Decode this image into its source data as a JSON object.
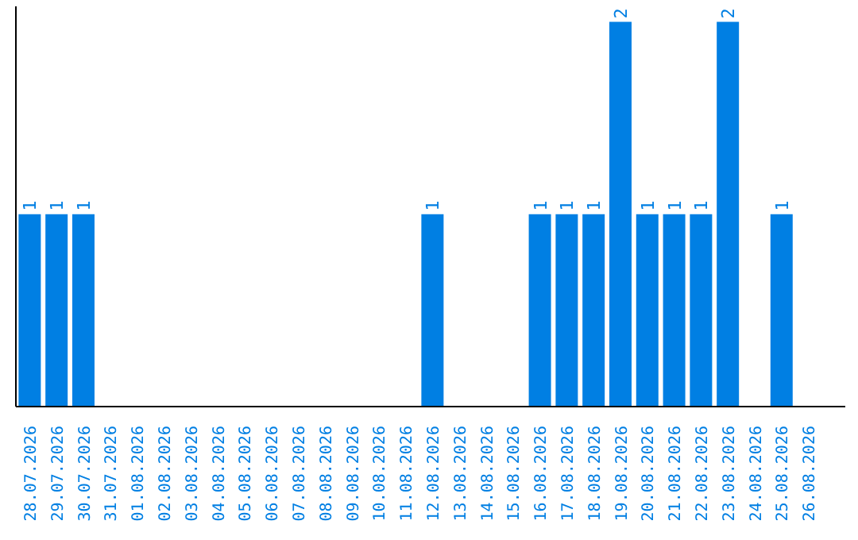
{
  "chart_data": {
    "type": "bar",
    "relative": false,
    "categories": [
      "28.07.2026",
      "29.07.2026",
      "30.07.2026",
      "31.07.2026",
      "01.08.2026",
      "02.08.2026",
      "03.08.2026",
      "04.08.2026",
      "05.08.2026",
      "06.08.2026",
      "07.08.2026",
      "08.08.2026",
      "09.08.2026",
      "10.08.2026",
      "11.08.2026",
      "12.08.2026",
      "13.08.2026",
      "14.08.2026",
      "15.08.2026",
      "16.08.2026",
      "17.08.2026",
      "18.08.2026",
      "19.08.2026",
      "20.08.2026",
      "21.08.2026",
      "22.08.2026",
      "23.08.2026",
      "24.08.2026",
      "25.08.2026",
      "26.08.2026"
    ],
    "values": [
      1,
      1,
      1,
      0,
      0,
      0,
      0,
      0,
      0,
      0,
      0,
      0,
      0,
      0,
      0,
      1,
      0,
      0,
      0,
      1,
      1,
      1,
      2,
      1,
      1,
      1,
      2,
      0,
      1,
      0
    ],
    "value_labels": [
      "1",
      "1",
      "1",
      null,
      null,
      null,
      null,
      null,
      null,
      null,
      null,
      null,
      null,
      null,
      null,
      "1",
      null,
      null,
      null,
      "1",
      "1",
      "1",
      "2",
      "1",
      "1",
      "1",
      "2",
      null,
      "1",
      null
    ],
    "color": "#007fe3",
    "grid": false,
    "legend": false
  }
}
